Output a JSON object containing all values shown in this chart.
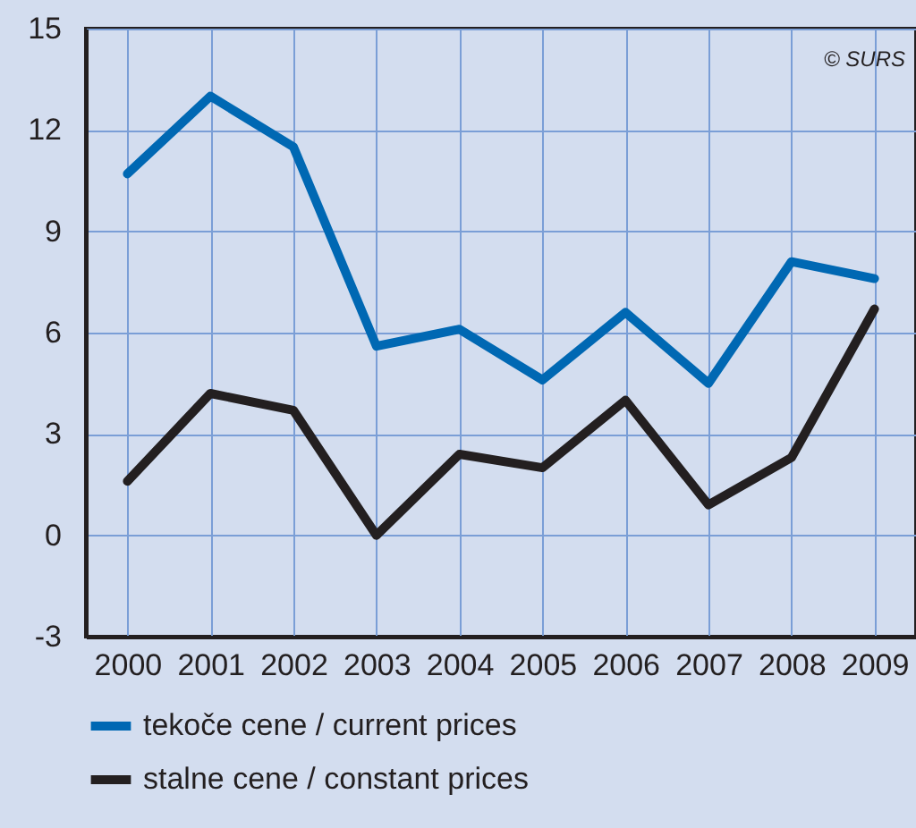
{
  "chart_data": {
    "type": "line",
    "categories": [
      "2000",
      "2001",
      "2002",
      "2003",
      "2004",
      "2005",
      "2006",
      "2007",
      "2008",
      "2009"
    ],
    "series": [
      {
        "name": "tekoče cene / current prices",
        "color": "#0068b3",
        "values": [
          10.7,
          13.0,
          11.5,
          5.6,
          6.1,
          4.6,
          6.6,
          4.5,
          8.1,
          7.6
        ]
      },
      {
        "name": "stalne cene / constant prices",
        "color": "#231f20",
        "values": [
          1.6,
          4.2,
          3.7,
          0.0,
          2.4,
          2.0,
          4.0,
          0.9,
          2.3,
          6.7
        ]
      }
    ],
    "ylim": [
      -3,
      15
    ],
    "yticks": [
      -3,
      0,
      3,
      6,
      9,
      12,
      15
    ],
    "grid": true,
    "legend": "bottom",
    "marker": "none",
    "line_style": "solid",
    "annotations": [
      "© SURS"
    ]
  }
}
